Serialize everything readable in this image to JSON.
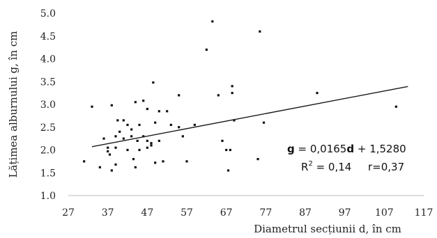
{
  "chart_data": {
    "type": "scatter",
    "xlabel": "Diametrul secțiunii d, în cm",
    "ylabel": "Lățimea alburnului g, în cm",
    "xlim": [
      27,
      117
    ],
    "ylim": [
      1.0,
      5.0
    ],
    "x_ticks": [
      "27",
      "37",
      "47",
      "57",
      "67",
      "77",
      "87",
      "97",
      "107",
      "117"
    ],
    "y_ticks": [
      "1.0",
      "1.5",
      "2.0",
      "2.5",
      "3.0",
      "3.5",
      "4.0",
      "4.5",
      "5.0"
    ],
    "grid": false,
    "equation": {
      "line1": {
        "g": "g",
        "a": " = 0,0165",
        "d": "d",
        "b": " + 1,5280"
      },
      "r2": {
        "base": "R",
        "sup": "2",
        "val": " = 0,14",
        "r": "r=0,37"
      }
    },
    "trendline": {
      "slope": 0.0165,
      "intercept": 1.528,
      "x_start": 33,
      "x_end": 113
    },
    "points": [
      {
        "x": 33,
        "y": 2.95
      },
      {
        "x": 31,
        "y": 1.75
      },
      {
        "x": 35,
        "y": 1.62
      },
      {
        "x": 36,
        "y": 2.25
      },
      {
        "x": 37,
        "y": 1.97
      },
      {
        "x": 37,
        "y": 2.05
      },
      {
        "x": 37.5,
        "y": 1.9
      },
      {
        "x": 38,
        "y": 2.98
      },
      {
        "x": 38,
        "y": 1.55
      },
      {
        "x": 39,
        "y": 2.3
      },
      {
        "x": 39,
        "y": 2.05
      },
      {
        "x": 39,
        "y": 1.68
      },
      {
        "x": 39.5,
        "y": 2.65
      },
      {
        "x": 40,
        "y": 2.4
      },
      {
        "x": 41,
        "y": 2.25
      },
      {
        "x": 41,
        "y": 2.65
      },
      {
        "x": 42,
        "y": 2.55
      },
      {
        "x": 42,
        "y": 2.0
      },
      {
        "x": 43,
        "y": 2.45
      },
      {
        "x": 43,
        "y": 2.3
      },
      {
        "x": 43.5,
        "y": 1.8
      },
      {
        "x": 44,
        "y": 3.05
      },
      {
        "x": 44,
        "y": 1.62
      },
      {
        "x": 44.5,
        "y": 2.2
      },
      {
        "x": 45,
        "y": 2.55
      },
      {
        "x": 45,
        "y": 2.0
      },
      {
        "x": 46,
        "y": 2.3
      },
      {
        "x": 46,
        "y": 3.08
      },
      {
        "x": 47,
        "y": 2.2
      },
      {
        "x": 47,
        "y": 2.9
      },
      {
        "x": 47,
        "y": 2.05
      },
      {
        "x": 48,
        "y": 2.1
      },
      {
        "x": 48,
        "y": 2.15
      },
      {
        "x": 48.5,
        "y": 3.48
      },
      {
        "x": 49,
        "y": 2.6
      },
      {
        "x": 49,
        "y": 1.72
      },
      {
        "x": 50,
        "y": 2.85
      },
      {
        "x": 50,
        "y": 2.2
      },
      {
        "x": 51,
        "y": 1.75
      },
      {
        "x": 52,
        "y": 2.85
      },
      {
        "x": 53,
        "y": 2.55
      },
      {
        "x": 55,
        "y": 2.5
      },
      {
        "x": 55,
        "y": 3.2
      },
      {
        "x": 56,
        "y": 2.3
      },
      {
        "x": 57,
        "y": 1.75
      },
      {
        "x": 59,
        "y": 2.55
      },
      {
        "x": 62,
        "y": 4.2
      },
      {
        "x": 63.5,
        "y": 4.82
      },
      {
        "x": 65,
        "y": 3.2
      },
      {
        "x": 66,
        "y": 2.2
      },
      {
        "x": 67,
        "y": 2.0
      },
      {
        "x": 67.5,
        "y": 1.55
      },
      {
        "x": 68,
        "y": 2.0
      },
      {
        "x": 68.5,
        "y": 3.4
      },
      {
        "x": 68.5,
        "y": 3.25
      },
      {
        "x": 69,
        "y": 2.65
      },
      {
        "x": 75,
        "y": 1.8
      },
      {
        "x": 75.5,
        "y": 4.6
      },
      {
        "x": 76.5,
        "y": 2.6
      },
      {
        "x": 90,
        "y": 3.25
      },
      {
        "x": 110,
        "y": 2.95
      }
    ]
  }
}
